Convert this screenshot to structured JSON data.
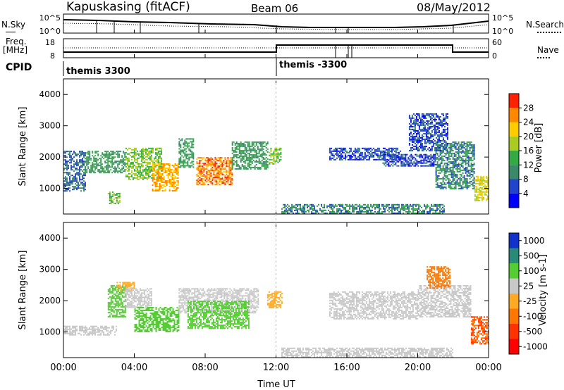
{
  "header": {
    "station": "Kapuskasing (fitACF)",
    "beam": "Beam 06",
    "date": "08/May/2012"
  },
  "top_panels": {
    "nsky_label": "N.Sky",
    "nsky_ticks": [
      "10^5",
      "10^0"
    ],
    "nsearch_label": "N.Search",
    "nsearch_ticks": [
      "10^5",
      "10^0"
    ],
    "freq_label": "Freq.",
    "freq_unit": "[MHz]",
    "freq_ticks": [
      "18",
      "8"
    ],
    "nave_label": "Nave",
    "nave_ticks": [
      "60",
      "0"
    ],
    "cpid_label": "CPID",
    "cpid_segments": [
      "themis 3300",
      "themis -3300"
    ],
    "cpid_switch_hour": 12.0
  },
  "time_axis": {
    "label": "Time UT",
    "ticks": [
      "00:00",
      "04:00",
      "08:00",
      "12:00",
      "16:00",
      "20:00",
      "00:00"
    ],
    "range_hours": [
      0,
      24
    ]
  },
  "power_panel": {
    "ylabel": "Slant Range [km]",
    "yticks": [
      "1000",
      "2000",
      "3000",
      "4000"
    ],
    "colorbar_label": "Power [dB]",
    "colorbar_ticks": [
      "4",
      "8",
      "12",
      "16",
      "20",
      "24",
      "28"
    ],
    "colors": [
      "#0000ff",
      "#2244cc",
      "#3a8a6a",
      "#33aa44",
      "#aacc22",
      "#ffcc00",
      "#ff8800",
      "#ff2200"
    ]
  },
  "velocity_panel": {
    "ylabel": "Slant Range [km]",
    "yticks": [
      "1000",
      "2000",
      "3000",
      "4000"
    ],
    "colorbar_label": "Velocity [m s-1]",
    "colorbar_ticks": [
      "1000",
      "500",
      "100",
      "25",
      "-25",
      "-100",
      "-500",
      "-1000"
    ],
    "colors": [
      "#1133cc",
      "#2a8a7a",
      "#55cc33",
      "#c8c8c8",
      "#ffaa22",
      "#ff7700",
      "#ff3300",
      "#ff0000"
    ]
  },
  "chart_data": [
    {
      "type": "heatmap",
      "title": "Power [dB]",
      "xlabel": "Time UT",
      "ylabel": "Slant Range [km]",
      "xlim": [
        0,
        24
      ],
      "ylim": [
        180,
        4500
      ],
      "colorbar_range": [
        0,
        30
      ],
      "regions": [
        {
          "t": [
            0.0,
            1.2
          ],
          "r": [
            900,
            2200
          ],
          "level": 8
        },
        {
          "t": [
            1.2,
            3.5
          ],
          "r": [
            1500,
            2200
          ],
          "level": 12
        },
        {
          "t": [
            2.5,
            3.2
          ],
          "r": [
            500,
            900
          ],
          "level": 16
        },
        {
          "t": [
            3.5,
            5.5
          ],
          "r": [
            1300,
            2300
          ],
          "level": 16
        },
        {
          "t": [
            5.0,
            6.5
          ],
          "r": [
            900,
            1800
          ],
          "level": 24
        },
        {
          "t": [
            6.5,
            7.3
          ],
          "r": [
            1700,
            2600
          ],
          "level": 12
        },
        {
          "t": [
            7.5,
            9.5
          ],
          "r": [
            1100,
            2000
          ],
          "level": 26
        },
        {
          "t": [
            9.5,
            11.5
          ],
          "r": [
            1600,
            2500
          ],
          "level": 12
        },
        {
          "t": [
            11.6,
            12.3
          ],
          "r": [
            1800,
            2300
          ],
          "level": 16
        },
        {
          "t": [
            12.3,
            21.5
          ],
          "r": [
            200,
            500
          ],
          "level": 10
        },
        {
          "t": [
            15.0,
            19.0
          ],
          "r": [
            1900,
            2300
          ],
          "level": 6
        },
        {
          "t": [
            18.0,
            21.0
          ],
          "r": [
            1700,
            2100
          ],
          "level": 6
        },
        {
          "t": [
            19.5,
            21.7
          ],
          "r": [
            2200,
            3400
          ],
          "level": 6
        },
        {
          "t": [
            21.0,
            23.2
          ],
          "r": [
            1000,
            2500
          ],
          "level": 10
        },
        {
          "t": [
            23.2,
            24.0
          ],
          "r": [
            600,
            1400
          ],
          "level": 20
        }
      ]
    },
    {
      "type": "heatmap",
      "title": "Velocity [m s-1]",
      "xlabel": "Time UT",
      "ylabel": "Slant Range [km]",
      "xlim": [
        0,
        24
      ],
      "ylim": [
        180,
        4500
      ],
      "colorbar_range": [
        -1000,
        1000
      ],
      "regions": [
        {
          "t": [
            0.0,
            3.0
          ],
          "r": [
            900,
            1200
          ],
          "vel": 0
        },
        {
          "t": [
            2.5,
            3.5
          ],
          "r": [
            1500,
            2500
          ],
          "vel": 150
        },
        {
          "t": [
            3.0,
            4.0
          ],
          "r": [
            2300,
            2600
          ],
          "vel": -120
        },
        {
          "t": [
            3.5,
            5.0
          ],
          "r": [
            1800,
            2400
          ],
          "vel": 0
        },
        {
          "t": [
            4.0,
            6.5
          ],
          "r": [
            1000,
            1800
          ],
          "vel": 120
        },
        {
          "t": [
            6.5,
            11.0
          ],
          "r": [
            1600,
            2400
          ],
          "vel": 0
        },
        {
          "t": [
            7.0,
            10.5
          ],
          "r": [
            1100,
            2000
          ],
          "vel": 150
        },
        {
          "t": [
            11.5,
            12.3
          ],
          "r": [
            1800,
            2300
          ],
          "vel": -120
        },
        {
          "t": [
            12.3,
            22.0
          ],
          "r": [
            200,
            500
          ],
          "vel": 0
        },
        {
          "t": [
            15.0,
            20.0
          ],
          "r": [
            1400,
            2300
          ],
          "vel": 0
        },
        {
          "t": [
            20.0,
            23.0
          ],
          "r": [
            1500,
            2500
          ],
          "vel": 0
        },
        {
          "t": [
            20.5,
            21.8
          ],
          "r": [
            2400,
            3100
          ],
          "vel": -300
        },
        {
          "t": [
            23.0,
            24.0
          ],
          "r": [
            600,
            1500
          ],
          "vel": -400
        }
      ]
    }
  ]
}
